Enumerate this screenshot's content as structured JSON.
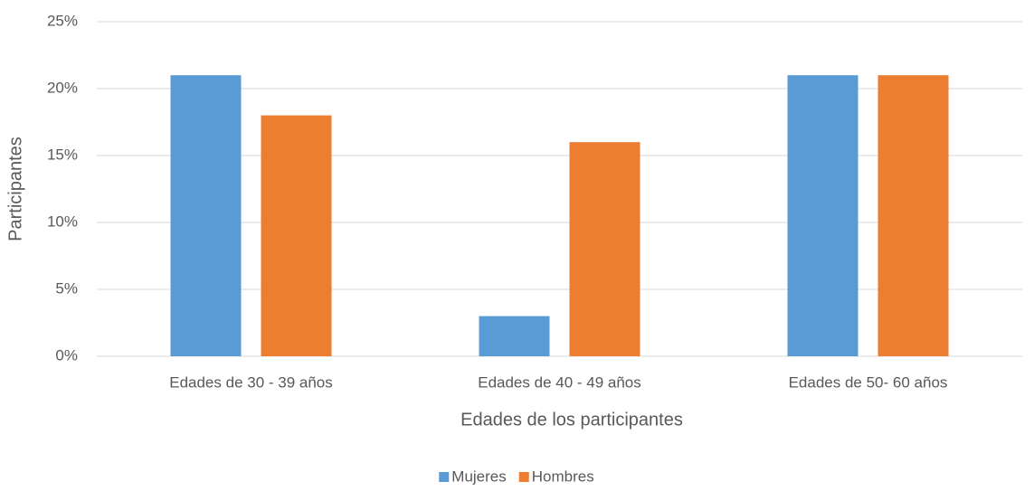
{
  "chart_data": {
    "type": "bar",
    "x_label": "Edades de los participantes",
    "y_label": "Participantes",
    "categories": [
      "Edades de 30 - 39 años",
      "Edades de 40 - 49 años",
      "Edades de 50- 60 años"
    ],
    "series": [
      {
        "name": "Mujeres",
        "color": "#5b9bd5",
        "values": [
          21,
          3,
          21
        ]
      },
      {
        "name": "Hombres",
        "color": "#ed7d31",
        "values": [
          18,
          16,
          21
        ]
      }
    ],
    "ylim": [
      0,
      25
    ],
    "yticks": [
      {
        "value": 0,
        "label": "0%"
      },
      {
        "value": 5,
        "label": "5%"
      },
      {
        "value": 10,
        "label": "10%"
      },
      {
        "value": 15,
        "label": "15%"
      },
      {
        "value": 20,
        "label": "20%"
      },
      {
        "value": 25,
        "label": "25%"
      }
    ],
    "grid": true,
    "legend": "bottom"
  }
}
